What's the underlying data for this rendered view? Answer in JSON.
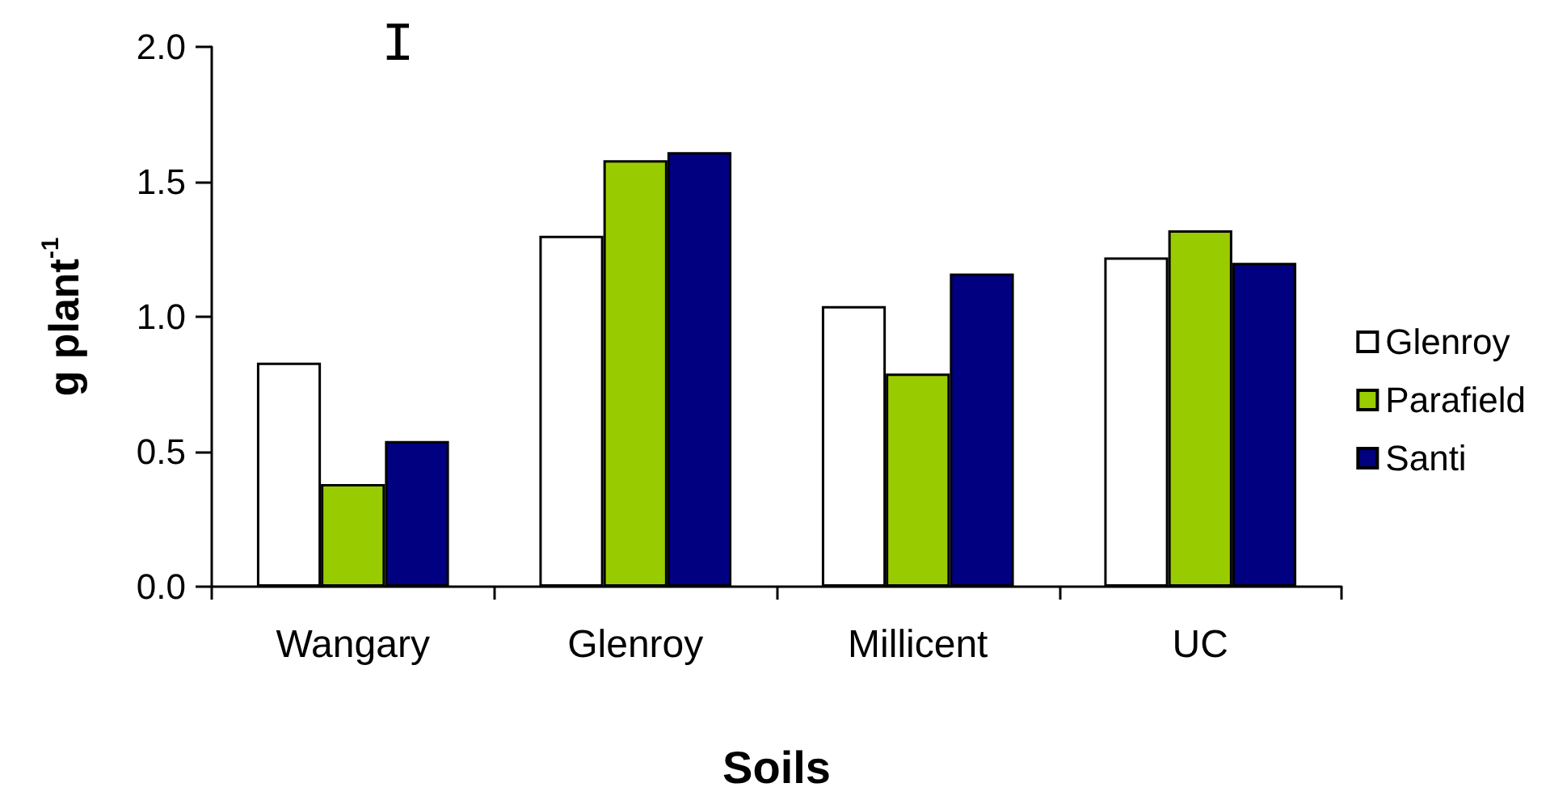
{
  "chart_data": {
    "type": "bar",
    "xlabel": "Soils",
    "ylabel": "g plant$^{-1}$",
    "categories": [
      "Wangary",
      "Glenroy",
      "Millicent",
      "UC"
    ],
    "series": [
      {
        "name": "Glenroy",
        "color": "#ffffff",
        "values": [
          0.83,
          1.3,
          1.04,
          1.22
        ]
      },
      {
        "name": "Parafield",
        "color": "#99cc00",
        "values": [
          0.38,
          1.58,
          0.79,
          1.32
        ]
      },
      {
        "name": "Santi",
        "color": "#000080",
        "values": [
          0.54,
          1.61,
          1.16,
          1.2
        ]
      }
    ],
    "ylim": [
      0,
      2
    ],
    "yticks": [
      {
        "value": 0,
        "label": "0.0"
      },
      0.5,
      {
        "value": 1,
        "label": "1.0"
      },
      1.5,
      {
        "value": 2,
        "label": "2.0"
      }
    ],
    "grid": false,
    "legend": "right",
    "annotations": [
      "I"
    ]
  }
}
